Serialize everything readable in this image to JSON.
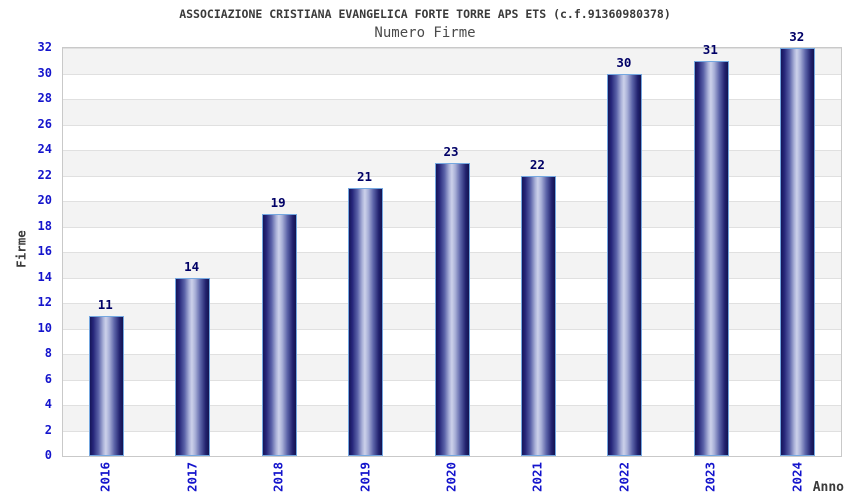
{
  "chart_data": {
    "type": "bar",
    "title": "ASSOCIAZIONE CRISTIANA EVANGELICA FORTE TORRE APS ETS (c.f.91360980378)",
    "subtitle": "Numero Firme",
    "xlabel": "Anno",
    "ylabel": "Firme",
    "categories": [
      "2016",
      "2017",
      "2018",
      "2019",
      "2020",
      "2021",
      "2022",
      "2023",
      "2024"
    ],
    "values": [
      11,
      14,
      19,
      21,
      23,
      22,
      30,
      31,
      32
    ],
    "ylim": [
      0,
      32
    ],
    "ytick_step": 2,
    "yticks": [
      0,
      2,
      4,
      6,
      8,
      10,
      12,
      14,
      16,
      18,
      20,
      22,
      24,
      26,
      28,
      30,
      32
    ],
    "grid": true,
    "band_pattern": "alternating gray/white horizontal bands, gray in 2-4, 6-8, 10-12 ... 30-32",
    "legend": null,
    "colors": {
      "tick_label_blue": "#1414cc",
      "value_label_navy": "#000066",
      "bar_edge_dark": "#15155a",
      "bar_center_light": "#ccd1ea",
      "bar_border": "#74a7e0",
      "band_gray": "#f3f3f3",
      "grid_line": "#e0e0e0",
      "plot_border": "#c9c9c9",
      "title_text": "#3a3a3a",
      "background": "#ffffff"
    }
  }
}
